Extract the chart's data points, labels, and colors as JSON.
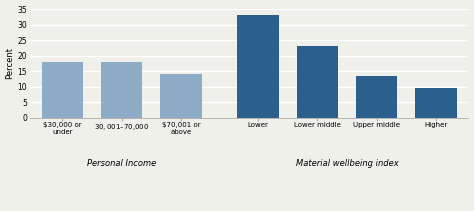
{
  "categories": [
    "$30,000 or\nunder",
    "$30,001–$70,000",
    "$70,001 or\nabove",
    "Lower",
    "Lower middle",
    "Upper middle",
    "Higher"
  ],
  "values": [
    18.0,
    18.0,
    14.0,
    33.0,
    23.0,
    13.5,
    9.5
  ],
  "bar_colors": [
    "#8eacc8",
    "#8eacc8",
    "#8eacc8",
    "#2b5f8e",
    "#2b5f8e",
    "#2b5f8e",
    "#2b5f8e"
  ],
  "ylabel": "Percent",
  "ylim": [
    0,
    35
  ],
  "yticks": [
    0,
    5,
    10,
    15,
    20,
    25,
    30,
    35
  ],
  "group_labels": [
    "Personal Income",
    "Material wellbeing index"
  ],
  "background_color": "#f0f0eb",
  "grid_color": "#ffffff",
  "bar_width": 0.7
}
